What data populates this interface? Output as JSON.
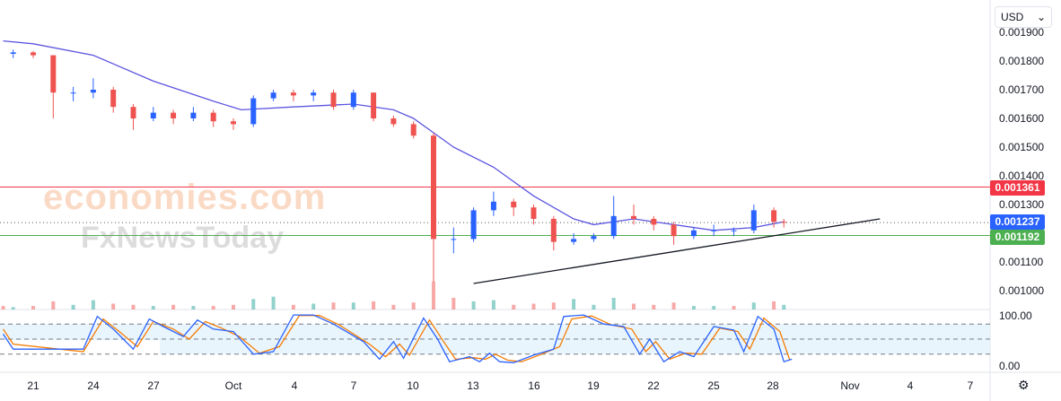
{
  "currency_selector": {
    "value": "USD"
  },
  "watermarks": [
    "economies.com",
    "FxNewsToday"
  ],
  "price_axis": {
    "ticks": [
      "0.001900",
      "0.001800",
      "0.001700",
      "0.001600",
      "0.001500",
      "0.001400",
      "0.001300",
      "0.001100",
      "0.001000"
    ]
  },
  "indicator_axis": {
    "ticks": [
      "100.00",
      "0.00"
    ],
    "upper_band": 80,
    "lower_band": 20,
    "mid": 50
  },
  "time_axis": {
    "ticks": [
      "21",
      "24",
      "27",
      "Oct",
      "4",
      "7",
      "10",
      "13",
      "16",
      "19",
      "22",
      "25",
      "28",
      "Nov",
      "4",
      "7"
    ]
  },
  "levels": {
    "resistance": {
      "label": "0.001361",
      "value": 0.001361,
      "color": "#f23645"
    },
    "current": {
      "label": "0.001237",
      "value": 0.001237,
      "color": "#2962ff"
    },
    "support": {
      "label": "0.001192",
      "value": 0.001192,
      "color": "#4caf50"
    }
  },
  "colors": {
    "up": "#2962ff",
    "down": "#ef5350",
    "ma": "#5b55e0",
    "stoch_k": "#2962ff",
    "stoch_d": "#f57c00"
  },
  "trendline": {
    "from": {
      "day": 22.0,
      "price": 0.001025
    },
    "to": {
      "day": 42.3,
      "price": 0.00125
    }
  },
  "candles": [
    {
      "day": -1.8,
      "o": 0.00183,
      "c": 0.001825,
      "h": 0.00184,
      "l": 0.00181
    },
    {
      "day": -1,
      "o": 0.001825,
      "c": 0.00183,
      "h": 0.00184,
      "l": 0.00181
    },
    {
      "day": 0,
      "o": 0.00183,
      "c": 0.00182,
      "h": 0.001835,
      "l": 0.00181
    },
    {
      "day": 1,
      "o": 0.00182,
      "c": 0.00169,
      "h": 0.00182,
      "l": 0.0016
    },
    {
      "day": 2,
      "o": 0.00169,
      "c": 0.00169,
      "h": 0.00171,
      "l": 0.00166
    },
    {
      "day": 3,
      "o": 0.00169,
      "c": 0.0017,
      "h": 0.00174,
      "l": 0.00167
    },
    {
      "day": 4,
      "o": 0.0017,
      "c": 0.00164,
      "h": 0.00171,
      "l": 0.00162
    },
    {
      "day": 5,
      "o": 0.00164,
      "c": 0.0016,
      "h": 0.00165,
      "l": 0.00156
    },
    {
      "day": 6,
      "o": 0.0016,
      "c": 0.00162,
      "h": 0.00164,
      "l": 0.00159
    },
    {
      "day": 7,
      "o": 0.00162,
      "c": 0.0016,
      "h": 0.00163,
      "l": 0.00158
    },
    {
      "day": 8,
      "o": 0.0016,
      "c": 0.00162,
      "h": 0.00164,
      "l": 0.00159
    },
    {
      "day": 9,
      "o": 0.00162,
      "c": 0.00159,
      "h": 0.00163,
      "l": 0.00157
    },
    {
      "day": 10,
      "o": 0.00159,
      "c": 0.00158,
      "h": 0.0016,
      "l": 0.00156
    },
    {
      "day": 11,
      "o": 0.00158,
      "c": 0.00167,
      "h": 0.00168,
      "l": 0.00157
    },
    {
      "day": 12,
      "o": 0.00167,
      "c": 0.00169,
      "h": 0.0017,
      "l": 0.00166
    },
    {
      "day": 13,
      "o": 0.00169,
      "c": 0.00168,
      "h": 0.0017,
      "l": 0.00166
    },
    {
      "day": 14,
      "o": 0.00168,
      "c": 0.00169,
      "h": 0.0017,
      "l": 0.00166
    },
    {
      "day": 15,
      "o": 0.00169,
      "c": 0.00164,
      "h": 0.0017,
      "l": 0.00163
    },
    {
      "day": 16,
      "o": 0.00164,
      "c": 0.00169,
      "h": 0.0017,
      "l": 0.00163
    },
    {
      "day": 17,
      "o": 0.00169,
      "c": 0.0016,
      "h": 0.00169,
      "l": 0.00159
    },
    {
      "day": 18,
      "o": 0.0016,
      "c": 0.00158,
      "h": 0.00161,
      "l": 0.00157
    },
    {
      "day": 19,
      "o": 0.00158,
      "c": 0.00154,
      "h": 0.00159,
      "l": 0.00153
    },
    {
      "day": 20,
      "o": 0.00154,
      "c": 0.00118,
      "h": 0.00155,
      "l": 0.00103
    },
    {
      "day": 21,
      "o": 0.00118,
      "c": 0.00118,
      "h": 0.00122,
      "l": 0.00113
    },
    {
      "day": 22,
      "o": 0.00118,
      "c": 0.00128,
      "h": 0.00129,
      "l": 0.00117
    },
    {
      "day": 23,
      "o": 0.00128,
      "c": 0.00131,
      "h": 0.001345,
      "l": 0.00126
    },
    {
      "day": 24,
      "o": 0.00131,
      "c": 0.00129,
      "h": 0.00132,
      "l": 0.00126
    },
    {
      "day": 25,
      "o": 0.00129,
      "c": 0.00125,
      "h": 0.0013,
      "l": 0.00123
    },
    {
      "day": 26,
      "o": 0.00125,
      "c": 0.00117,
      "h": 0.00126,
      "l": 0.00114
    },
    {
      "day": 27,
      "o": 0.00117,
      "c": 0.00118,
      "h": 0.0012,
      "l": 0.00116
    },
    {
      "day": 28,
      "o": 0.00118,
      "c": 0.00119,
      "h": 0.0012,
      "l": 0.00117
    },
    {
      "day": 29,
      "o": 0.00119,
      "c": 0.00126,
      "h": 0.00133,
      "l": 0.00118
    },
    {
      "day": 30,
      "o": 0.00126,
      "c": 0.00125,
      "h": 0.0013,
      "l": 0.00123
    },
    {
      "day": 31,
      "o": 0.00125,
      "c": 0.00123,
      "h": 0.00126,
      "l": 0.00121
    },
    {
      "day": 32,
      "o": 0.00123,
      "c": 0.00119,
      "h": 0.00124,
      "l": 0.00116
    },
    {
      "day": 33,
      "o": 0.00119,
      "c": 0.00121,
      "h": 0.00122,
      "l": 0.00118
    },
    {
      "day": 34,
      "o": 0.00121,
      "c": 0.00121,
      "h": 0.00123,
      "l": 0.00119
    },
    {
      "day": 35,
      "o": 0.00121,
      "c": 0.00121,
      "h": 0.00122,
      "l": 0.00119
    },
    {
      "day": 36,
      "o": 0.00121,
      "c": 0.00128,
      "h": 0.0013,
      "l": 0.0012
    },
    {
      "day": 37,
      "o": 0.00128,
      "c": 0.00124,
      "h": 0.00129,
      "l": 0.00122
    },
    {
      "day": 37.5,
      "o": 0.00124,
      "c": 0.001237,
      "h": 0.00125,
      "l": 0.00122
    }
  ],
  "moving_average": [
    {
      "day": -1.5,
      "v": 0.00187
    },
    {
      "day": 0,
      "v": 0.00186
    },
    {
      "day": 3,
      "v": 0.00182
    },
    {
      "day": 6,
      "v": 0.00173
    },
    {
      "day": 9,
      "v": 0.00166
    },
    {
      "day": 10.4,
      "v": 0.00163
    },
    {
      "day": 13,
      "v": 0.00164
    },
    {
      "day": 16,
      "v": 0.00165
    },
    {
      "day": 18,
      "v": 0.00163
    },
    {
      "day": 19,
      "v": 0.0016
    },
    {
      "day": 21,
      "v": 0.0015
    },
    {
      "day": 23,
      "v": 0.00143
    },
    {
      "day": 25,
      "v": 0.00133
    },
    {
      "day": 27,
      "v": 0.00125
    },
    {
      "day": 28,
      "v": 0.00123
    },
    {
      "day": 30,
      "v": 0.00125
    },
    {
      "day": 32,
      "v": 0.00123
    },
    {
      "day": 34,
      "v": 0.00121
    },
    {
      "day": 36,
      "v": 0.00122
    },
    {
      "day": 37.5,
      "v": 0.00124
    }
  ],
  "volume": [
    {
      "day": -1.5,
      "v": 3,
      "up": false
    },
    {
      "day": -1,
      "v": 2,
      "up": true
    },
    {
      "day": 0,
      "v": 3,
      "up": false
    },
    {
      "day": 1,
      "v": 7,
      "up": false
    },
    {
      "day": 2,
      "v": 4,
      "up": true
    },
    {
      "day": 3,
      "v": 8,
      "up": true
    },
    {
      "day": 4,
      "v": 5,
      "up": false
    },
    {
      "day": 5,
      "v": 4,
      "up": false
    },
    {
      "day": 6,
      "v": 3,
      "up": true
    },
    {
      "day": 7,
      "v": 4,
      "up": false
    },
    {
      "day": 8,
      "v": 3,
      "up": true
    },
    {
      "day": 9,
      "v": 3,
      "up": false
    },
    {
      "day": 10,
      "v": 4,
      "up": false
    },
    {
      "day": 11,
      "v": 9,
      "up": true
    },
    {
      "day": 12,
      "v": 11,
      "up": true
    },
    {
      "day": 13,
      "v": 4,
      "up": false
    },
    {
      "day": 14,
      "v": 5,
      "up": true
    },
    {
      "day": 15,
      "v": 6,
      "up": false
    },
    {
      "day": 16,
      "v": 6,
      "up": true
    },
    {
      "day": 17,
      "v": 7,
      "up": false
    },
    {
      "day": 18,
      "v": 4,
      "up": false
    },
    {
      "day": 19,
      "v": 6,
      "up": false
    },
    {
      "day": 20,
      "v": 24,
      "up": false
    },
    {
      "day": 21,
      "v": 10,
      "up": false
    },
    {
      "day": 22,
      "v": 7,
      "up": true
    },
    {
      "day": 23,
      "v": 8,
      "up": true
    },
    {
      "day": 24,
      "v": 4,
      "up": false
    },
    {
      "day": 25,
      "v": 5,
      "up": false
    },
    {
      "day": 26,
      "v": 6,
      "up": false
    },
    {
      "day": 27,
      "v": 9,
      "up": true
    },
    {
      "day": 28,
      "v": 4,
      "up": true
    },
    {
      "day": 29,
      "v": 10,
      "up": true
    },
    {
      "day": 30,
      "v": 5,
      "up": false
    },
    {
      "day": 31,
      "v": 4,
      "up": false
    },
    {
      "day": 32,
      "v": 6,
      "up": false
    },
    {
      "day": 33,
      "v": 3,
      "up": true
    },
    {
      "day": 34,
      "v": 3,
      "up": true
    },
    {
      "day": 35,
      "v": 3,
      "up": false
    },
    {
      "day": 36,
      "v": 6,
      "up": true
    },
    {
      "day": 37,
      "v": 7,
      "up": false
    },
    {
      "day": 37.5,
      "v": 4,
      "up": true
    }
  ],
  "stochastic": {
    "k": [
      {
        "day": -1.5,
        "v": 60
      },
      {
        "day": -1,
        "v": 30
      },
      {
        "day": 2.5,
        "v": 30
      },
      {
        "day": 3.2,
        "v": 95
      },
      {
        "day": 4,
        "v": 70
      },
      {
        "day": 5,
        "v": 30
      },
      {
        "day": 5.8,
        "v": 90
      },
      {
        "day": 6.5,
        "v": 75
      },
      {
        "day": 7.5,
        "v": 55
      },
      {
        "day": 8.2,
        "v": 88
      },
      {
        "day": 9,
        "v": 70
      },
      {
        "day": 10,
        "v": 65
      },
      {
        "day": 11,
        "v": 20
      },
      {
        "day": 12,
        "v": 25
      },
      {
        "day": 13,
        "v": 98
      },
      {
        "day": 14,
        "v": 98
      },
      {
        "day": 15,
        "v": 80
      },
      {
        "day": 16.5,
        "v": 45
      },
      {
        "day": 17.3,
        "v": 10
      },
      {
        "day": 18,
        "v": 45
      },
      {
        "day": 18.5,
        "v": 12
      },
      {
        "day": 19.5,
        "v": 92
      },
      {
        "day": 20.2,
        "v": 50
      },
      {
        "day": 20.8,
        "v": 5
      },
      {
        "day": 21.8,
        "v": 15
      },
      {
        "day": 22.3,
        "v": 5
      },
      {
        "day": 22.8,
        "v": 22
      },
      {
        "day": 23.3,
        "v": 5
      },
      {
        "day": 24,
        "v": 3
      },
      {
        "day": 25,
        "v": 18
      },
      {
        "day": 26,
        "v": 30
      },
      {
        "day": 26.5,
        "v": 95
      },
      {
        "day": 27.5,
        "v": 98
      },
      {
        "day": 28.5,
        "v": 80
      },
      {
        "day": 29.5,
        "v": 75
      },
      {
        "day": 30.3,
        "v": 20
      },
      {
        "day": 30.8,
        "v": 50
      },
      {
        "day": 31.5,
        "v": 5
      },
      {
        "day": 32.3,
        "v": 25
      },
      {
        "day": 33,
        "v": 15
      },
      {
        "day": 34,
        "v": 75
      },
      {
        "day": 35,
        "v": 68
      },
      {
        "day": 35.5,
        "v": 25
      },
      {
        "day": 36.2,
        "v": 95
      },
      {
        "day": 37,
        "v": 70
      },
      {
        "day": 37.5,
        "v": 5
      },
      {
        "day": 37.9,
        "v": 10
      }
    ],
    "d": [
      {
        "day": -1.5,
        "v": 70
      },
      {
        "day": -1,
        "v": 40
      },
      {
        "day": 2.5,
        "v": 25
      },
      {
        "day": 3.5,
        "v": 90
      },
      {
        "day": 4.3,
        "v": 65
      },
      {
        "day": 5.2,
        "v": 35
      },
      {
        "day": 6,
        "v": 85
      },
      {
        "day": 7,
        "v": 70
      },
      {
        "day": 7.8,
        "v": 50
      },
      {
        "day": 8.6,
        "v": 85
      },
      {
        "day": 9.4,
        "v": 72
      },
      {
        "day": 10.3,
        "v": 55
      },
      {
        "day": 11.3,
        "v": 22
      },
      {
        "day": 12.3,
        "v": 35
      },
      {
        "day": 13.3,
        "v": 97
      },
      {
        "day": 14.3,
        "v": 97
      },
      {
        "day": 15.3,
        "v": 78
      },
      {
        "day": 16.8,
        "v": 40
      },
      {
        "day": 17.6,
        "v": 15
      },
      {
        "day": 18.3,
        "v": 40
      },
      {
        "day": 18.8,
        "v": 18
      },
      {
        "day": 19.8,
        "v": 88
      },
      {
        "day": 20.5,
        "v": 45
      },
      {
        "day": 21.1,
        "v": 10
      },
      {
        "day": 22,
        "v": 13
      },
      {
        "day": 22.6,
        "v": 10
      },
      {
        "day": 23.1,
        "v": 20
      },
      {
        "day": 23.7,
        "v": 8
      },
      {
        "day": 24.4,
        "v": 5
      },
      {
        "day": 25.4,
        "v": 20
      },
      {
        "day": 26.3,
        "v": 35
      },
      {
        "day": 26.9,
        "v": 90
      },
      {
        "day": 27.9,
        "v": 96
      },
      {
        "day": 28.9,
        "v": 78
      },
      {
        "day": 29.9,
        "v": 70
      },
      {
        "day": 30.6,
        "v": 25
      },
      {
        "day": 31.1,
        "v": 45
      },
      {
        "day": 31.8,
        "v": 10
      },
      {
        "day": 32.6,
        "v": 22
      },
      {
        "day": 33.4,
        "v": 20
      },
      {
        "day": 34.3,
        "v": 72
      },
      {
        "day": 35.2,
        "v": 65
      },
      {
        "day": 35.8,
        "v": 30
      },
      {
        "day": 36.5,
        "v": 92
      },
      {
        "day": 37.3,
        "v": 65
      },
      {
        "day": 37.8,
        "v": 8
      }
    ]
  }
}
